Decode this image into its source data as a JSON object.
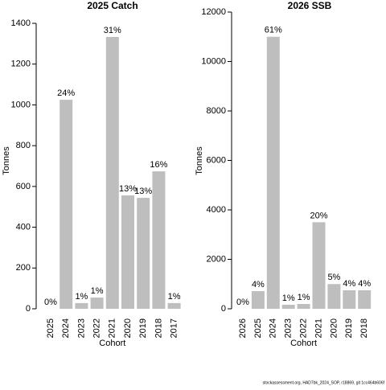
{
  "chart_data": [
    {
      "type": "bar",
      "title": "2025 Catch",
      "xlabel": "Cohort",
      "ylabel": "Tonnes",
      "categories": [
        "2025",
        "2024",
        "2023",
        "2022",
        "2021",
        "2020",
        "2019",
        "2018",
        "2017"
      ],
      "values": [
        0,
        1025,
        28,
        55,
        1333,
        556,
        544,
        674,
        28
      ],
      "share_labels": [
        "0%",
        "24%",
        "1%",
        "1%",
        "31%",
        "13%",
        "13%",
        "16%",
        "1%"
      ],
      "color": "#bebebe",
      "ylim": [
        0,
        1400
      ],
      "yticks": [
        0,
        200,
        400,
        600,
        800,
        1000,
        1200,
        1400
      ]
    },
    {
      "type": "bar",
      "title": "2026 SSB",
      "xlabel": "Cohort",
      "ylabel": "Tonnes",
      "categories": [
        "2026",
        "2025",
        "2024",
        "2023",
        "2022",
        "2021",
        "2020",
        "2019",
        "2018"
      ],
      "values": [
        0,
        715,
        11000,
        163,
        195,
        3500,
        1000,
        750,
        750
      ],
      "share_labels": [
        "0%",
        "4%",
        "61%",
        "1%",
        "1%",
        "20%",
        "5%",
        "4%",
        "4%"
      ],
      "color": "#bebebe",
      "ylim": [
        0,
        12000
      ],
      "yticks": [
        0,
        2000,
        4000,
        6000,
        8000,
        10000,
        12000
      ]
    }
  ],
  "footer": "stockassessment.org, HAD7bk_2024_SOP, r18869, git 1cc464b606f"
}
